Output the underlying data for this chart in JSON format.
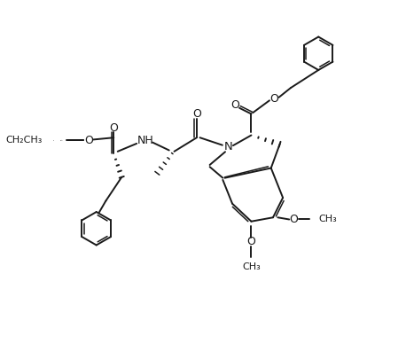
{
  "bg_color": "#ffffff",
  "line_color": "#1a1a1a",
  "line_width": 1.4,
  "font_size": 8.5,
  "figsize": [
    4.58,
    3.88
  ],
  "dpi": 100,
  "xlim": [
    0,
    10
  ],
  "ylim": [
    0,
    8.5
  ]
}
